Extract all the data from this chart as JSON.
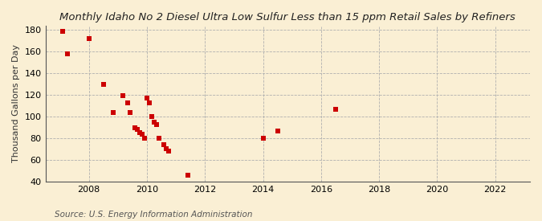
{
  "title": "Monthly Idaho No 2 Diesel Ultra Low Sulfur Less than 15 ppm Retail Sales by Refiners",
  "ylabel": "Thousand Gallons per Day",
  "source": "Source: U.S. Energy Information Administration",
  "background_color": "#faefd4",
  "marker_color": "#cc0000",
  "xlim": [
    2006.5,
    2023.2
  ],
  "ylim": [
    40,
    184
  ],
  "xticks": [
    2008,
    2010,
    2012,
    2014,
    2016,
    2018,
    2020,
    2022
  ],
  "yticks": [
    40,
    60,
    80,
    100,
    120,
    140,
    160,
    180
  ],
  "scatter_x": [
    2007.08,
    2007.25,
    2008.0,
    2008.5,
    2008.83,
    2009.17,
    2009.33,
    2009.42,
    2009.58,
    2009.67,
    2009.75,
    2009.83,
    2009.92,
    2010.0,
    2010.08,
    2010.17,
    2010.25,
    2010.33,
    2010.42,
    2010.58,
    2010.67,
    2010.75,
    2011.42,
    2014.0,
    2014.5,
    2016.5
  ],
  "scatter_y": [
    179,
    158,
    172,
    130,
    104,
    119,
    113,
    104,
    90,
    88,
    85,
    84,
    80,
    117,
    113,
    100,
    95,
    93,
    80,
    74,
    70,
    68,
    46,
    80,
    87,
    107
  ],
  "title_fontsize": 9.5,
  "tick_fontsize": 8,
  "label_fontsize": 8,
  "source_fontsize": 7.5
}
